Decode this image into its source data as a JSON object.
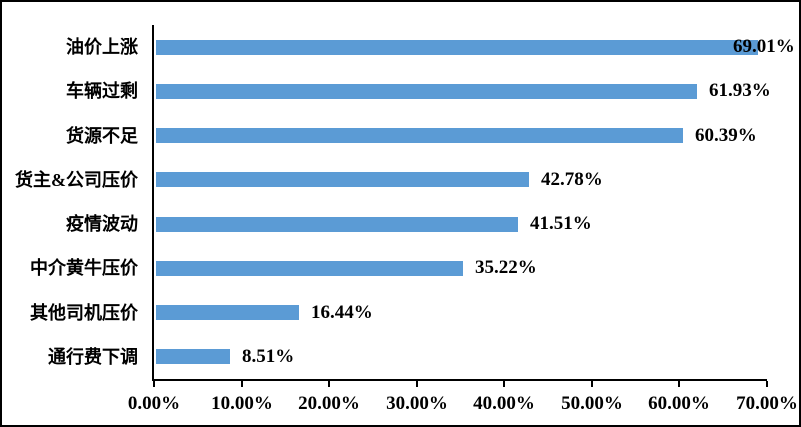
{
  "chart_data": {
    "type": "bar",
    "orientation": "horizontal",
    "title": "",
    "xlabel": "",
    "ylabel": "",
    "categories": [
      "油价上涨",
      "车辆过剩",
      "货源不足",
      "货主&公司压价",
      "疫情波动",
      "中介黄牛压价",
      "其他司机压价",
      "通行费下调"
    ],
    "values": [
      69.01,
      61.93,
      60.39,
      42.78,
      41.51,
      35.22,
      16.44,
      8.51
    ],
    "data_labels": [
      "69.01%",
      "61.93%",
      "60.39%",
      "42.78%",
      "41.51%",
      "35.22%",
      "16.44%",
      "8.51%"
    ],
    "x_ticks": [
      "0.00%",
      "10.00%",
      "20.00%",
      "30.00%",
      "40.00%",
      "50.00%",
      "60.00%",
      "70.00%"
    ],
    "x_tick_values": [
      0,
      10,
      20,
      30,
      40,
      50,
      60,
      70
    ],
    "xlim": [
      0,
      70
    ],
    "grid": false,
    "legend_position": "none",
    "colors": {
      "bar": "#5B9BD5",
      "axis": "#000000",
      "text": "#000000",
      "background": "#ffffff",
      "frame_border": "#000000"
    }
  }
}
